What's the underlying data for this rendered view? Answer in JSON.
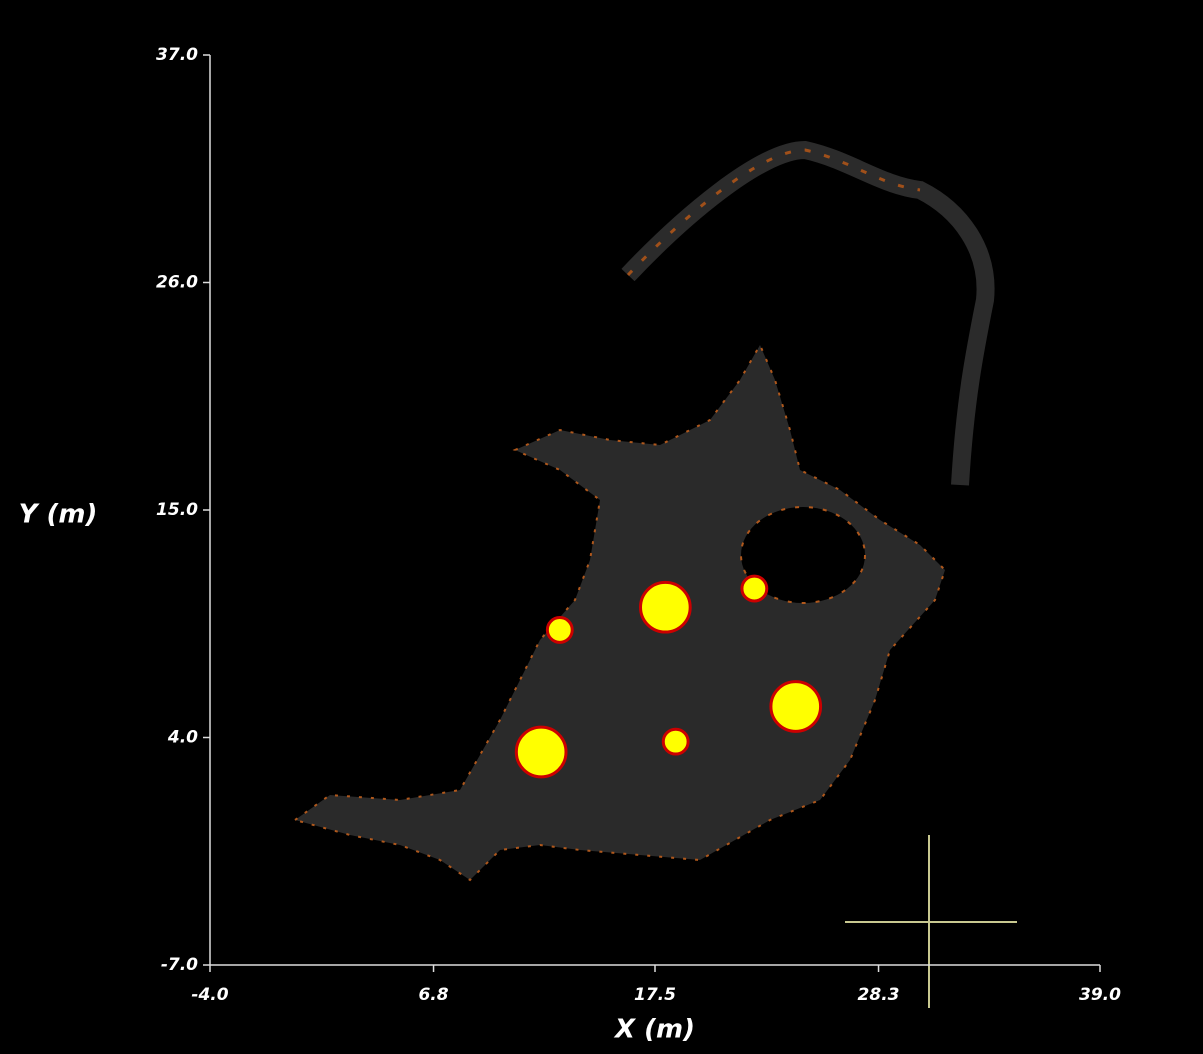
{
  "chart_data": {
    "type": "scatter",
    "x_label": "X (m)",
    "y_label": "Y (m)",
    "xlim": [
      -4.0,
      39.0
    ],
    "xticks": [
      {
        "value": -4.0,
        "label": "-4.0"
      },
      6.8,
      17.5,
      28.3,
      {
        "value": 39.0,
        "label": "39.0"
      }
    ],
    "ylim": [
      -7.0,
      37.0
    ],
    "yticks": [
      {
        "value": -7.0,
        "label": "-7.0"
      },
      {
        "value": 4.0,
        "label": "4.0"
      },
      {
        "value": 15.0,
        "label": "15.0"
      },
      {
        "value": 26.0,
        "label": "26.0"
      },
      {
        "value": 37.0,
        "label": "37.0"
      }
    ],
    "x": [
      12.0,
      18.0,
      12.9,
      22.3,
      24.3,
      18.5
    ],
    "series": [
      {
        "color": "#ffff00",
        "edgecolor": "#cc0000",
        "values": [
          3.3,
          10.3,
          9.2,
          11.2,
          5.5,
          3.8
        ],
        "sizes": [
          1.2,
          1.2,
          0.6,
          0.6,
          1.2,
          0.6
        ]
      }
    ]
  }
}
